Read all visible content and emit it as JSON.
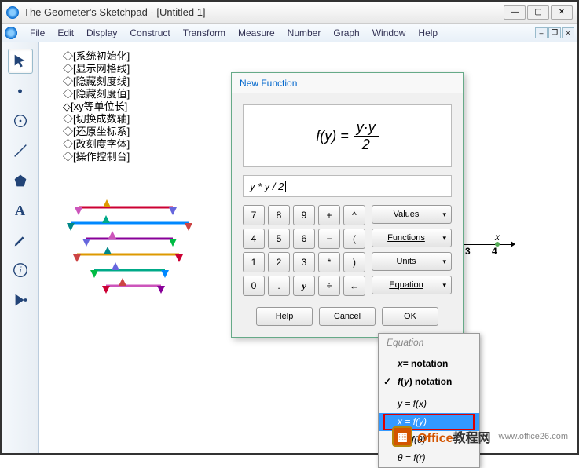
{
  "window": {
    "title": "The Geometer's Sketchpad - [Untitled 1]"
  },
  "menu": {
    "items": [
      "File",
      "Edit",
      "Display",
      "Construct",
      "Transform",
      "Measure",
      "Number",
      "Graph",
      "Window",
      "Help"
    ]
  },
  "script_lines": [
    "[系统初始化]",
    "[显示网格线]",
    "[隐藏刻度线]",
    "[隐藏刻度值]",
    "[xy等单位长]",
    "[切换成数轴]",
    "[还原坐标系]",
    "[改刻度字体]",
    "[操作控制台]"
  ],
  "axis": {
    "var": "x",
    "ticks": [
      "3",
      "4"
    ]
  },
  "dialog": {
    "title": "New Function",
    "preview_lhs": "f(y) =",
    "preview_num": "y·y",
    "preview_den": "2",
    "input": "y * y / 2",
    "keypad": [
      "7",
      "8",
      "9",
      "+",
      "^",
      "4",
      "5",
      "6",
      "−",
      "(",
      "1",
      "2",
      "3",
      "*",
      ")",
      "0",
      ".",
      "y",
      "÷",
      "←"
    ],
    "selectors": [
      "Values",
      "Functions",
      "Units",
      "Equation"
    ],
    "buttons": {
      "help": "Help",
      "cancel": "Cancel",
      "ok": "OK"
    }
  },
  "popup": {
    "header": "Equation",
    "items": [
      {
        "label": "x= notation",
        "bold": true,
        "checked": false
      },
      {
        "label": "f(y) notation",
        "bold": true,
        "checked": true
      },
      {
        "label": "y = f(x)"
      },
      {
        "label": "x = f(y)",
        "selected": true,
        "highlight": true
      },
      {
        "label": "r = f(θ)"
      },
      {
        "label": "θ = f(r)"
      }
    ]
  },
  "sliders": {
    "colors": [
      "#c03",
      "#08f",
      "#809",
      "#d90",
      "#0a8",
      "#c5b",
      "#088",
      "#66d",
      "#c44",
      "#0b4"
    ]
  },
  "watermark": {
    "brand": "Office",
    "suffix": "教程网",
    "url": "www.office26.com"
  }
}
